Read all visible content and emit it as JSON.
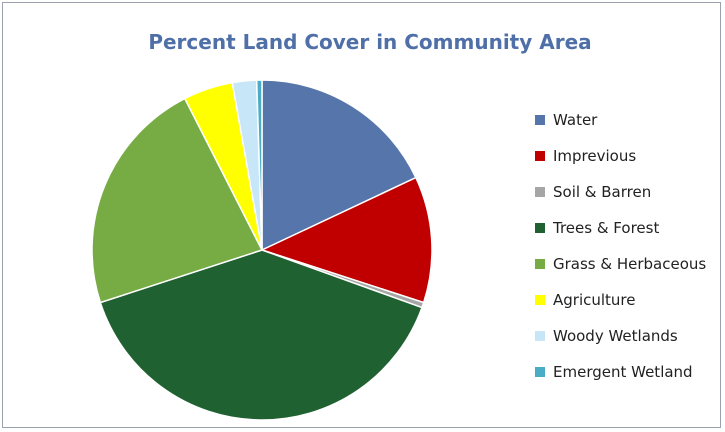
{
  "chart_data": {
    "type": "pie",
    "title": "Percent Land Cover in Community Area",
    "legend_position": "right",
    "series": [
      {
        "name": "Water",
        "value": 18.0,
        "color": "#5575ab"
      },
      {
        "name": "Imprevious",
        "value": 12.0,
        "color": "#c00000"
      },
      {
        "name": "Soil & Barren",
        "value": 0.5,
        "color": "#a6a6a6"
      },
      {
        "name": "Trees & Forest",
        "value": 39.5,
        "color": "#1f6130"
      },
      {
        "name": "Grass & Herbaceous",
        "value": 22.5,
        "color": "#77ac45"
      },
      {
        "name": "Agriculture",
        "value": 4.7,
        "color": "#ffff00"
      },
      {
        "name": "Woody Wetlands",
        "value": 2.3,
        "color": "#c7e6f7"
      },
      {
        "name": "Emergent Wetland",
        "value": 0.5,
        "color": "#4bacc6"
      }
    ]
  }
}
